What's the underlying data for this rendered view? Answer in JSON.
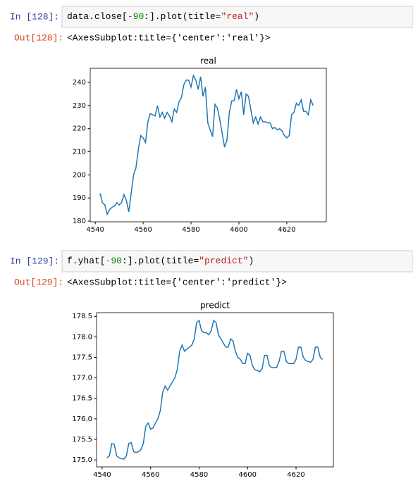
{
  "cells": [
    {
      "in_prompt": "In  [128]:",
      "code": [
        {
          "text": "data.close[",
          "color": "#000000"
        },
        {
          "text": "-",
          "color": "#aa22ff"
        },
        {
          "text": "90",
          "color": "#008800"
        },
        {
          "text": ":].plot(title=",
          "color": "#000000"
        },
        {
          "text": "\"real\"",
          "color": "#ba2121"
        },
        {
          "text": ")",
          "color": "#000000"
        }
      ],
      "out_prompt": "Out[128]:",
      "output": "<AxesSubplot:title={'center':'real'}>"
    },
    {
      "in_prompt": "In  [129]:",
      "code": [
        {
          "text": "f.yhat[",
          "color": "#000000"
        },
        {
          "text": "-",
          "color": "#aa22ff"
        },
        {
          "text": "90",
          "color": "#008800"
        },
        {
          "text": ":].plot(title=",
          "color": "#000000"
        },
        {
          "text": "\"predict\"",
          "color": "#ba2121"
        },
        {
          "text": ")",
          "color": "#000000"
        }
      ],
      "out_prompt": "Out[129]:",
      "output": "<AxesSubplot:title={'center':'predict'}>"
    }
  ],
  "chart_data": [
    {
      "type": "line",
      "title": "real",
      "color": "#1f77b4",
      "x": [
        4542,
        4543,
        4544,
        4545,
        4546,
        4547,
        4548,
        4549,
        4550,
        4551,
        4552,
        4553,
        4554,
        4555,
        4556,
        4557,
        4558,
        4559,
        4560,
        4561,
        4562,
        4563,
        4564,
        4565,
        4566,
        4567,
        4568,
        4569,
        4570,
        4571,
        4572,
        4573,
        4574,
        4575,
        4576,
        4577,
        4578,
        4579,
        4580,
        4581,
        4582,
        4583,
        4584,
        4585,
        4586,
        4587,
        4588,
        4589,
        4590,
        4591,
        4592,
        4593,
        4594,
        4595,
        4596,
        4597,
        4598,
        4599,
        4600,
        4601,
        4602,
        4603,
        4604,
        4605,
        4606,
        4607,
        4608,
        4609,
        4610,
        4611,
        4612,
        4613,
        4614,
        4615,
        4616,
        4617,
        4618,
        4619,
        4620,
        4621,
        4622,
        4623,
        4624,
        4625,
        4626,
        4627,
        4628,
        4629,
        4630,
        4631
      ],
      "values": [
        192,
        188,
        187,
        183,
        185,
        186,
        186.5,
        188,
        187,
        188,
        191.5,
        189,
        184,
        192,
        200,
        203,
        211,
        217,
        216,
        214,
        223,
        226.5,
        226,
        225.5,
        230,
        225,
        227,
        224.5,
        227,
        225.5,
        223,
        228.5,
        227,
        231.5,
        233.5,
        239,
        241,
        241,
        238,
        243,
        241,
        237,
        242.5,
        234,
        238,
        222.5,
        219.5,
        216.5,
        230.5,
        229,
        224,
        218,
        212,
        215,
        227,
        232,
        232,
        237,
        233,
        236,
        226,
        235,
        234,
        228,
        222.5,
        225,
        222,
        225,
        223,
        223,
        222.5,
        222.5,
        220,
        220.5,
        219.5,
        220,
        219,
        217,
        216,
        217,
        226,
        227,
        231,
        230,
        232.5,
        227.5,
        227.5,
        226,
        232.5,
        230
      ],
      "xlim": [
        4537.9,
        4636.5
      ],
      "xticks": [
        4540,
        4560,
        4580,
        4600,
        4620
      ],
      "ylim": [
        179.7,
        246.1
      ],
      "yticks": [
        180,
        190,
        200,
        210,
        220,
        230,
        240
      ]
    },
    {
      "type": "line",
      "title": "predict",
      "color": "#1f77b4",
      "x": [
        4542,
        4543,
        4544,
        4545,
        4546,
        4547,
        4548,
        4549,
        4550,
        4551,
        4552,
        4553,
        4554,
        4555,
        4556,
        4557,
        4558,
        4559,
        4560,
        4561,
        4562,
        4563,
        4564,
        4565,
        4566,
        4567,
        4568,
        4569,
        4570,
        4571,
        4572,
        4573,
        4574,
        4575,
        4576,
        4577,
        4578,
        4579,
        4580,
        4581,
        4582,
        4583,
        4584,
        4585,
        4586,
        4587,
        4588,
        4589,
        4590,
        4591,
        4592,
        4593,
        4594,
        4595,
        4596,
        4597,
        4598,
        4599,
        4600,
        4601,
        4602,
        4603,
        4604,
        4605,
        4606,
        4607,
        4608,
        4609,
        4610,
        4611,
        4612,
        4613,
        4614,
        4615,
        4616,
        4617,
        4618,
        4619,
        4620,
        4621,
        4622,
        4623,
        4624,
        4625,
        4626,
        4627,
        4628,
        4629,
        4630,
        4631
      ],
      "values": [
        175.05,
        175.1,
        175.4,
        175.38,
        175.1,
        175.05,
        175.03,
        175.02,
        175.1,
        175.4,
        175.42,
        175.2,
        175.18,
        175.2,
        175.25,
        175.4,
        175.82,
        175.9,
        175.75,
        175.78,
        175.9,
        176.0,
        176.2,
        176.65,
        176.8,
        176.7,
        176.8,
        176.9,
        177.0,
        177.2,
        177.65,
        177.8,
        177.65,
        177.7,
        177.75,
        177.8,
        177.95,
        178.35,
        178.4,
        178.15,
        178.1,
        178.1,
        178.05,
        178.15,
        178.4,
        178.35,
        178.05,
        177.95,
        177.85,
        177.75,
        177.75,
        177.95,
        177.9,
        177.65,
        177.5,
        177.45,
        177.35,
        177.35,
        177.6,
        177.55,
        177.3,
        177.2,
        177.18,
        177.15,
        177.22,
        177.55,
        177.55,
        177.3,
        177.25,
        177.25,
        177.25,
        177.4,
        177.65,
        177.65,
        177.4,
        177.35,
        177.35,
        177.35,
        177.45,
        177.75,
        177.75,
        177.5,
        177.42,
        177.4,
        177.38,
        177.45,
        177.75,
        177.75,
        177.5,
        177.45
      ],
      "xlim": [
        4537.7,
        4635.4
      ],
      "xticks": [
        4540,
        4560,
        4580,
        4600,
        4620
      ],
      "ylim": [
        174.83,
        178.59
      ],
      "yticks": [
        {
          "value": 175,
          "label": "175.0"
        },
        175.5,
        {
          "value": 176,
          "label": "176.0"
        },
        176.5,
        {
          "value": 177,
          "label": "177.0"
        },
        177.5,
        {
          "value": 178,
          "label": "178.0"
        },
        178.5
      ]
    }
  ]
}
